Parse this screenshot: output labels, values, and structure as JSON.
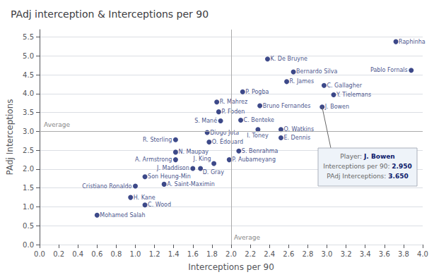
{
  "chart_data": {
    "type": "scatter",
    "title": "PAdj interception & Interceptions per 90",
    "xlabel": "Interceptions per 90",
    "ylabel": "PAdj Interceptions",
    "xlim": [
      0.0,
      4.0
    ],
    "ylim": [
      0.0,
      5.7
    ],
    "xticks": [
      {
        "value": 0,
        "label": "0.0"
      },
      0.2,
      0.4,
      0.6,
      0.8,
      {
        "value": 1,
        "label": "1.0"
      },
      1.2,
      1.4,
      1.6,
      1.8,
      {
        "value": 2,
        "label": "2.0"
      },
      2.2,
      2.4,
      2.6,
      2.8,
      {
        "value": 3,
        "label": "3.0"
      },
      3.2,
      3.4,
      3.6,
      3.8,
      {
        "value": 4,
        "label": "4.0"
      }
    ],
    "yticks": [
      {
        "value": 0,
        "label": "0.0"
      },
      0.5,
      {
        "value": 1,
        "label": "1.0"
      },
      1.5,
      {
        "value": 2,
        "label": "2.0"
      },
      2.5,
      {
        "value": 3,
        "label": "3.0"
      },
      3.5,
      {
        "value": 4,
        "label": "4.0"
      },
      4.5,
      {
        "value": 5,
        "label": "5.0"
      },
      5.5
    ],
    "grid": true,
    "color": "#0d1b6b",
    "x": [
      0.6,
      0.95,
      1.1,
      1.0,
      1.1,
      1.3,
      1.42,
      1.42,
      1.6,
      1.68,
      1.42,
      1.75,
      1.77,
      1.82,
      2.08,
      1.98,
      1.85,
      1.87,
      1.89,
      2.1,
      2.28,
      2.52,
      2.52,
      2.3,
      2.12,
      2.58,
      2.65,
      2.38,
      2.97,
      3.07,
      2.95,
      3.72,
      3.88
    ],
    "values": [
      0.78,
      1.25,
      1.05,
      1.55,
      1.8,
      1.6,
      2.45,
      2.25,
      2.02,
      2.02,
      2.78,
      2.97,
      2.72,
      2.15,
      2.48,
      2.25,
      3.78,
      3.52,
      3.28,
      3.3,
      3.05,
      3.05,
      2.83,
      3.68,
      4.05,
      4.32,
      4.58,
      4.92,
      4.22,
      3.97,
      3.65,
      5.38,
      4.62
    ],
    "labels": [
      "Mohamed Salah",
      "H. Kane",
      "C. Wood",
      "Cristiano Ronaldo",
      "Son Heung-Min",
      "A. Saint-Maximin",
      "N. Maupay",
      "A. Armstrong",
      "J. Maddison",
      "D. Gray",
      "R. Sterling",
      "Diogo Jota",
      "O. Édouard",
      "J. King",
      "S. Benrahma",
      "P. Aubameyang",
      "R. Mahrez",
      "P. Foden",
      "S. Mané",
      "C. Benteke",
      "I. Toney",
      "O. Watkins",
      "E. Dennis",
      "Bruno Fernandes",
      "P. Pogba",
      "R. James",
      "Bernardo Silva",
      "K. De Bruyne",
      "C. Gallagher",
      "Y. Tielemans",
      "J. Bowen",
      "Raphinha",
      "Pablo Fornals"
    ],
    "reference_lines": [
      {
        "axis": "y",
        "value": 3.0,
        "label": "Average"
      },
      {
        "axis": "x",
        "value": 2.0,
        "label": "Average"
      }
    ],
    "annotation": {
      "title": "Player:",
      "point": "J. Bowen",
      "fields": [
        {
          "label": "Interceptions per 90:",
          "value": 2.95,
          "value_label": "2.950"
        },
        {
          "label": "PAdj Interceptions:",
          "value": 3.65,
          "value_label": "3.650"
        }
      ]
    }
  }
}
